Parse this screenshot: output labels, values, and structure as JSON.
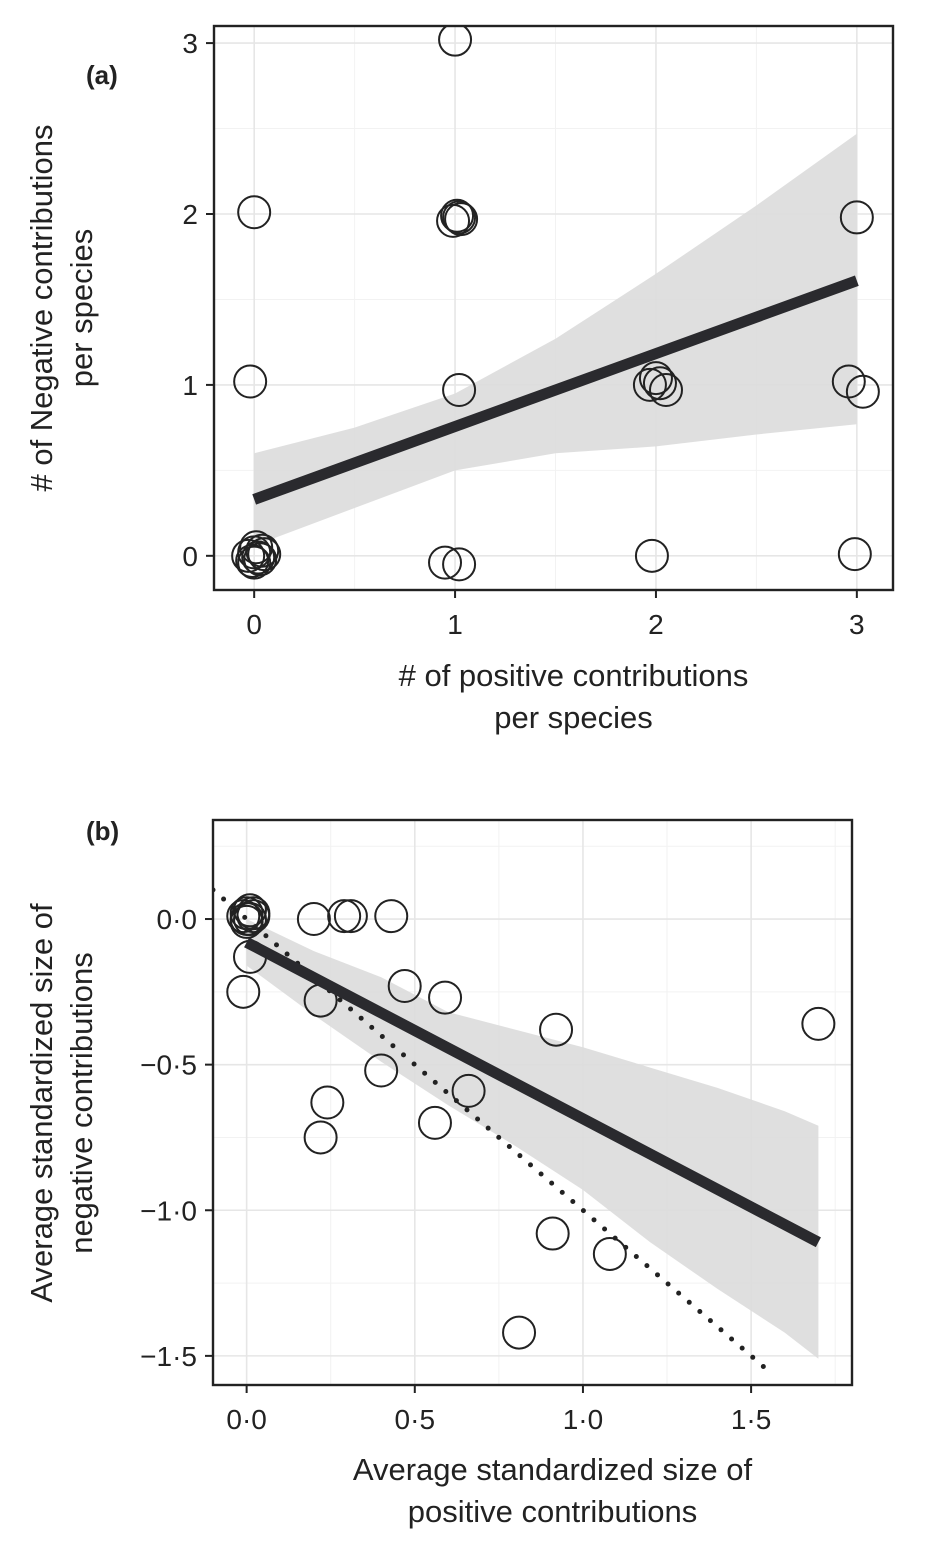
{
  "chart_data": [
    {
      "type": "scatter",
      "panel_label": "(a)",
      "xlabel": [
        "# of positive contributions",
        "per species"
      ],
      "ylabel": [
        "# of Negative contributions",
        "per species"
      ],
      "xlim": [
        -0.2,
        3.18
      ],
      "ylim": [
        -0.2,
        3.1
      ],
      "xticks": [
        {
          "v": 0,
          "label": "0"
        },
        {
          "v": 1,
          "label": "1"
        },
        {
          "v": 2,
          "label": "2"
        },
        {
          "v": 3,
          "label": "3"
        }
      ],
      "yticks": [
        {
          "v": 0,
          "label": "0"
        },
        {
          "v": 1,
          "label": "1"
        },
        {
          "v": 2,
          "label": "2"
        },
        {
          "v": 3,
          "label": "3"
        }
      ],
      "grid": true,
      "legend": "none",
      "points": [
        {
          "x": 1.0,
          "y": 3.02
        },
        {
          "x": 0.0,
          "y": 2.01
        },
        {
          "x": 0.99,
          "y": 1.96
        },
        {
          "x": 1.01,
          "y": 1.99
        },
        {
          "x": 1.03,
          "y": 1.97
        },
        {
          "x": 1.02,
          "y": 1.98
        },
        {
          "x": 3.0,
          "y": 1.98
        },
        {
          "x": -0.02,
          "y": 1.02
        },
        {
          "x": 1.02,
          "y": 0.97
        },
        {
          "x": 1.97,
          "y": 1.0
        },
        {
          "x": 2.0,
          "y": 1.04
        },
        {
          "x": 2.02,
          "y": 1.01
        },
        {
          "x": 2.05,
          "y": 0.97
        },
        {
          "x": 2.96,
          "y": 1.02
        },
        {
          "x": 3.03,
          "y": 0.96
        },
        {
          "x": -0.03,
          "y": 0.0
        },
        {
          "x": 0.0,
          "y": 0.02
        },
        {
          "x": 0.02,
          "y": -0.01
        },
        {
          "x": 0.04,
          "y": 0.03
        },
        {
          "x": -0.01,
          "y": -0.03
        },
        {
          "x": 0.01,
          "y": 0.05
        },
        {
          "x": 0.03,
          "y": -0.02
        },
        {
          "x": 0.05,
          "y": 0.01
        },
        {
          "x": 0.0,
          "y": -0.04
        },
        {
          "x": 0.95,
          "y": -0.04
        },
        {
          "x": 1.02,
          "y": -0.05
        },
        {
          "x": 1.98,
          "y": 0.0
        },
        {
          "x": 2.99,
          "y": 0.01
        }
      ],
      "fit": {
        "x": [
          0.0,
          3.0
        ],
        "y": [
          0.33,
          1.61
        ],
        "style": "solid"
      },
      "ci": {
        "x": [
          0.0,
          0.5,
          1.0,
          1.5,
          2.0,
          2.5,
          3.0
        ],
        "upper": [
          0.6,
          0.75,
          0.95,
          1.27,
          1.65,
          2.05,
          2.47
        ],
        "lower": [
          0.06,
          0.28,
          0.5,
          0.6,
          0.64,
          0.71,
          0.77
        ]
      }
    },
    {
      "type": "scatter",
      "panel_label": "(b)",
      "xlabel": [
        "Average standardized size of",
        "positive contributions"
      ],
      "ylabel": [
        "Average standardized size of",
        "negative contributions"
      ],
      "xlim": [
        -0.1,
        1.8
      ],
      "ylim": [
        -1.6,
        0.34
      ],
      "xticks": [
        {
          "v": 0,
          "label": "0·0"
        },
        {
          "v": 0.5,
          "label": "0·5"
        },
        {
          "v": 1.0,
          "label": "1·0"
        },
        {
          "v": 1.5,
          "label": "1·5"
        }
      ],
      "yticks": [
        {
          "v": 0,
          "label": "0·0"
        },
        {
          "v": -0.5,
          "label": "−0·5"
        },
        {
          "v": -1.0,
          "label": "−1·0"
        },
        {
          "v": -1.5,
          "label": "−1·5"
        }
      ],
      "grid": true,
      "legend": "none",
      "points": [
        {
          "x": -0.01,
          "y": 0.01
        },
        {
          "x": 0.0,
          "y": 0.02
        },
        {
          "x": 0.01,
          "y": 0.0
        },
        {
          "x": 0.02,
          "y": 0.02
        },
        {
          "x": 0.0,
          "y": -0.01
        },
        {
          "x": 0.02,
          "y": 0.01
        },
        {
          "x": 0.01,
          "y": 0.03
        },
        {
          "x": 0.0,
          "y": 0.0
        },
        {
          "x": 0.2,
          "y": 0.0
        },
        {
          "x": 0.29,
          "y": 0.01
        },
        {
          "x": 0.31,
          "y": 0.01
        },
        {
          "x": 0.43,
          "y": 0.01
        },
        {
          "x": 0.01,
          "y": -0.13
        },
        {
          "x": -0.01,
          "y": -0.25
        },
        {
          "x": 0.22,
          "y": -0.28
        },
        {
          "x": 0.47,
          "y": -0.23
        },
        {
          "x": 0.59,
          "y": -0.27
        },
        {
          "x": 0.92,
          "y": -0.38
        },
        {
          "x": 1.7,
          "y": -0.36
        },
        {
          "x": 0.4,
          "y": -0.52
        },
        {
          "x": 0.66,
          "y": -0.59
        },
        {
          "x": 0.56,
          "y": -0.7
        },
        {
          "x": 0.24,
          "y": -0.63
        },
        {
          "x": 0.22,
          "y": -0.75
        },
        {
          "x": 0.91,
          "y": -1.08
        },
        {
          "x": 1.08,
          "y": -1.15
        },
        {
          "x": 0.81,
          "y": -1.42
        }
      ],
      "fit": {
        "x": [
          0.0,
          1.7
        ],
        "y": [
          -0.08,
          -1.11
        ],
        "style": "solid"
      },
      "ci": {
        "x": [
          0.0,
          0.2,
          0.4,
          0.6,
          0.8,
          1.0,
          1.2,
          1.4,
          1.6,
          1.7
        ],
        "upper": [
          0.0,
          -0.11,
          -0.2,
          -0.32,
          -0.38,
          -0.44,
          -0.51,
          -0.58,
          -0.66,
          -0.71
        ],
        "lower": [
          -0.16,
          -0.33,
          -0.49,
          -0.64,
          -0.78,
          -0.93,
          -1.11,
          -1.27,
          -1.42,
          -1.51
        ]
      },
      "reference_line": {
        "x": [
          -0.1,
          1.55
        ],
        "y": [
          0.1,
          -1.55
        ],
        "style": "dotted"
      }
    }
  ]
}
